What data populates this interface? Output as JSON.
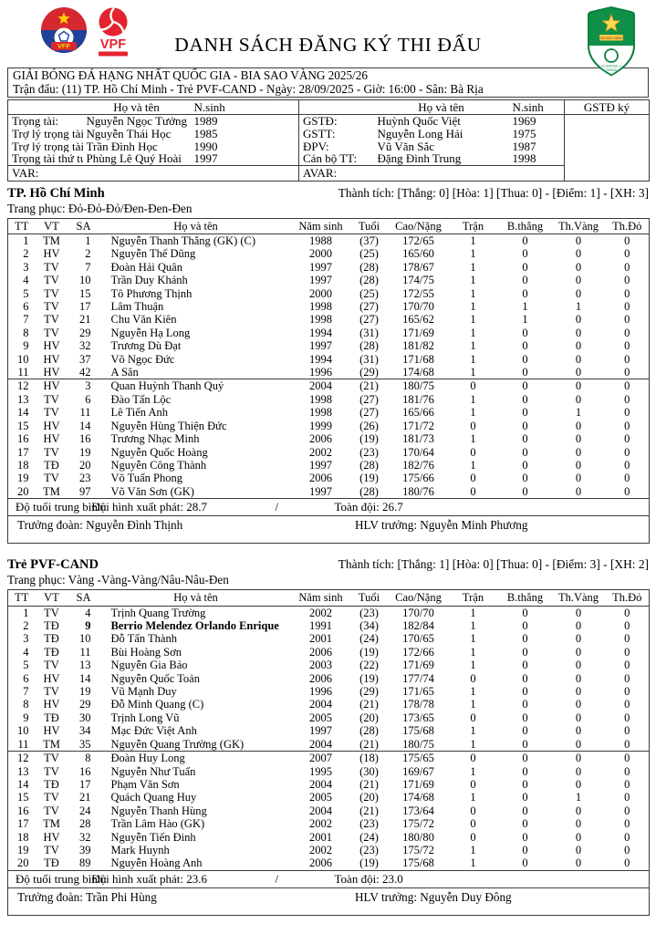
{
  "document": {
    "title": "DANH SÁCH ĐĂNG KÝ THI ĐẤU"
  },
  "colors": {
    "border": "#3b3b3b",
    "vff_red": "#d5282f",
    "vff_blue": "#20429a",
    "vpf_red": "#e42330",
    "badge_green": "#0c8040",
    "gold": "#f5c518"
  },
  "logos": {
    "vff_text": "VFF",
    "vpf_text": "VPF",
    "badge_banner": "BIA SAO VÀNG",
    "badge_line1": "V.LEAGUE 2",
    "badge_line2": "2025/26"
  },
  "match_info": {
    "tournament": "GIẢI BÓNG ĐÁ HẠNG NHẤT QUỐC GIA - BIA SAO VÀNG 2025/26",
    "fixture": "Trận đấu: (11) TP. Hồ Chí Minh - Trẻ PVF-CAND - Ngày: 28/09/2025 - Giờ: 16:00 - Sân: Bà Rịa"
  },
  "officials": {
    "name_header": "Họ và tên",
    "birth_header": "N.sinh",
    "sign_header": "GSTĐ ký",
    "left": [
      {
        "label": "Trọng tài:",
        "name": "Nguyễn Ngọc Tưởng",
        "birth": "1989"
      },
      {
        "label": "Trợ lý trọng tài 1:",
        "name": "Nguyễn Thái Học",
        "birth": "1985"
      },
      {
        "label": "Trợ lý trọng tài 2:",
        "name": "Trần Đình Học",
        "birth": "1990"
      },
      {
        "label": "Trọng tài thứ tư:",
        "name": "Phùng Lê Quý Hoài",
        "birth": "1997"
      }
    ],
    "right": [
      {
        "label": "GSTĐ:",
        "name": "Huỳnh Quốc Việt",
        "birth": "1969"
      },
      {
        "label": "GSTT:",
        "name": "Nguyễn Long Hải",
        "birth": "1975"
      },
      {
        "label": "ĐPV:",
        "name": "Vũ Văn Sắc",
        "birth": "1987"
      },
      {
        "label": "Cán bộ TT:",
        "name": "Đặng Đình Trung",
        "birth": "1998"
      }
    ],
    "var_label": "VAR:",
    "avar_label": "AVAR:"
  },
  "table_headers": {
    "tt": "TT",
    "vt": "VT",
    "sa": "SA",
    "name": "Họ và tên",
    "birth": "Năm sinh",
    "age": "Tuổi",
    "hw": "Cao/Nặng",
    "matches": "Trận",
    "goals": "B.thắng",
    "yellow": "Th.Vàng",
    "red": "Th.Đỏ"
  },
  "teams": [
    {
      "name": "TP. Hồ Chí Minh",
      "record": "Thành tích: [Thắng: 0] [Hòa: 1] [Thua: 0] - [Điểm: 1] - [XH: 3]",
      "kit": "Trang phục: Đỏ-Đỏ-Đỏ/Đen-Đen-Đen",
      "starters": [
        {
          "tt": "1",
          "vt": "TM",
          "sa": "1",
          "name": "Nguyễn Thanh Thắng (GK) (C)",
          "birth": "1988",
          "age": "(37)",
          "hw": "172/65",
          "matches": "1",
          "goals": "0",
          "yellow": "0",
          "red": "0"
        },
        {
          "tt": "2",
          "vt": "HV",
          "sa": "2",
          "name": "Nguyễn Thế Dũng",
          "birth": "2000",
          "age": "(25)",
          "hw": "165/60",
          "matches": "1",
          "goals": "0",
          "yellow": "0",
          "red": "0"
        },
        {
          "tt": "3",
          "vt": "TV",
          "sa": "7",
          "name": "Đoàn Hải Quân",
          "birth": "1997",
          "age": "(28)",
          "hw": "178/67",
          "matches": "1",
          "goals": "0",
          "yellow": "0",
          "red": "0"
        },
        {
          "tt": "4",
          "vt": "TV",
          "sa": "10",
          "name": "Trần Duy Khánh",
          "birth": "1997",
          "age": "(28)",
          "hw": "174/75",
          "matches": "1",
          "goals": "0",
          "yellow": "0",
          "red": "0"
        },
        {
          "tt": "5",
          "vt": "TV",
          "sa": "15",
          "name": "Tô Phương Thịnh",
          "birth": "2000",
          "age": "(25)",
          "hw": "172/55",
          "matches": "1",
          "goals": "0",
          "yellow": "0",
          "red": "0"
        },
        {
          "tt": "6",
          "vt": "TV",
          "sa": "17",
          "name": "Lâm Thuận",
          "birth": "1998",
          "age": "(27)",
          "hw": "170/70",
          "matches": "1",
          "goals": "1",
          "yellow": "1",
          "red": "0"
        },
        {
          "tt": "7",
          "vt": "TV",
          "sa": "21",
          "name": "Chu Văn Kiên",
          "birth": "1998",
          "age": "(27)",
          "hw": "165/62",
          "matches": "1",
          "goals": "1",
          "yellow": "0",
          "red": "0"
        },
        {
          "tt": "8",
          "vt": "TV",
          "sa": "29",
          "name": "Nguyễn Hạ Long",
          "birth": "1994",
          "age": "(31)",
          "hw": "171/69",
          "matches": "1",
          "goals": "0",
          "yellow": "0",
          "red": "0"
        },
        {
          "tt": "9",
          "vt": "HV",
          "sa": "32",
          "name": "Trương Dù Đạt",
          "birth": "1997",
          "age": "(28)",
          "hw": "181/82",
          "matches": "1",
          "goals": "0",
          "yellow": "0",
          "red": "0"
        },
        {
          "tt": "10",
          "vt": "HV",
          "sa": "37",
          "name": "Võ Ngọc Đức",
          "birth": "1994",
          "age": "(31)",
          "hw": "171/68",
          "matches": "1",
          "goals": "0",
          "yellow": "0",
          "red": "0"
        },
        {
          "tt": "11",
          "vt": "HV",
          "sa": "42",
          "name": "A Sân",
          "birth": "1996",
          "age": "(29)",
          "hw": "174/68",
          "matches": "1",
          "goals": "0",
          "yellow": "0",
          "red": "0"
        }
      ],
      "substitutes": [
        {
          "tt": "12",
          "vt": "HV",
          "sa": "3",
          "name": "Quan Huỳnh Thanh Quý",
          "birth": "2004",
          "age": "(21)",
          "hw": "180/75",
          "matches": "0",
          "goals": "0",
          "yellow": "0",
          "red": "0"
        },
        {
          "tt": "13",
          "vt": "TV",
          "sa": "6",
          "name": "Đào Tấn Lộc",
          "birth": "1998",
          "age": "(27)",
          "hw": "181/76",
          "matches": "1",
          "goals": "0",
          "yellow": "0",
          "red": "0"
        },
        {
          "tt": "14",
          "vt": "TV",
          "sa": "11",
          "name": "Lê Tiến Anh",
          "birth": "1998",
          "age": "(27)",
          "hw": "165/66",
          "matches": "1",
          "goals": "0",
          "yellow": "1",
          "red": "0"
        },
        {
          "tt": "15",
          "vt": "HV",
          "sa": "14",
          "name": "Nguyễn Hùng Thiện Đức",
          "birth": "1999",
          "age": "(26)",
          "hw": "171/72",
          "matches": "0",
          "goals": "0",
          "yellow": "0",
          "red": "0"
        },
        {
          "tt": "16",
          "vt": "HV",
          "sa": "16",
          "name": "Trương Nhạc Minh",
          "birth": "2006",
          "age": "(19)",
          "hw": "181/73",
          "matches": "1",
          "goals": "0",
          "yellow": "0",
          "red": "0"
        },
        {
          "tt": "17",
          "vt": "TV",
          "sa": "19",
          "name": "Nguyễn Quốc Hoàng",
          "birth": "2002",
          "age": "(23)",
          "hw": "170/64",
          "matches": "0",
          "goals": "0",
          "yellow": "0",
          "red": "0"
        },
        {
          "tt": "18",
          "vt": "TĐ",
          "sa": "20",
          "name": "Nguyễn Công Thành",
          "birth": "1997",
          "age": "(28)",
          "hw": "182/76",
          "matches": "1",
          "goals": "0",
          "yellow": "0",
          "red": "0"
        },
        {
          "tt": "19",
          "vt": "TV",
          "sa": "23",
          "name": "Võ Tuấn Phong",
          "birth": "2006",
          "age": "(19)",
          "hw": "175/66",
          "matches": "0",
          "goals": "0",
          "yellow": "0",
          "red": "0"
        },
        {
          "tt": "20",
          "vt": "TM",
          "sa": "97",
          "name": "Võ Văn Sơn (GK)",
          "birth": "1997",
          "age": "(28)",
          "hw": "180/76",
          "matches": "0",
          "goals": "0",
          "yellow": "0",
          "red": "0"
        }
      ],
      "avg_label": "Độ tuổi trung bình:",
      "avg_starting": "Đội hình xuất phát: 28.7",
      "avg_sep": "/",
      "avg_full": "Toàn đội: 26.7",
      "manager": "Trưởng đoàn: Nguyễn Đình Thịnh",
      "coach": "HLV trưởng: Nguyễn Minh Phương"
    },
    {
      "name": "Trẻ PVF-CAND",
      "record": "Thành tích: [Thắng: 1] [Hòa: 0] [Thua: 0] - [Điểm: 3] - [XH: 2]",
      "kit": "Trang phục: Vàng -Vàng-Vàng/Nâu-Nâu-Đen",
      "starters": [
        {
          "tt": "1",
          "vt": "TV",
          "sa": "4",
          "name": "Trịnh Quang Trường",
          "birth": "2002",
          "age": "(23)",
          "hw": "170/70",
          "matches": "1",
          "goals": "0",
          "yellow": "0",
          "red": "0"
        },
        {
          "tt": "2",
          "vt": "TĐ",
          "sa": "9",
          "name": "Berrio Melendez Orlando Enrique",
          "birth": "1991",
          "age": "(34)",
          "hw": "182/84",
          "matches": "1",
          "goals": "0",
          "yellow": "0",
          "red": "0",
          "bold": true
        },
        {
          "tt": "3",
          "vt": "TĐ",
          "sa": "10",
          "name": "Đỗ Tấn Thành",
          "birth": "2001",
          "age": "(24)",
          "hw": "170/65",
          "matches": "1",
          "goals": "0",
          "yellow": "0",
          "red": "0"
        },
        {
          "tt": "4",
          "vt": "TĐ",
          "sa": "11",
          "name": "Bùi Hoàng Sơn",
          "birth": "2006",
          "age": "(19)",
          "hw": "172/66",
          "matches": "1",
          "goals": "0",
          "yellow": "0",
          "red": "0"
        },
        {
          "tt": "5",
          "vt": "TV",
          "sa": "13",
          "name": "Nguyễn Gia Bảo",
          "birth": "2003",
          "age": "(22)",
          "hw": "171/69",
          "matches": "1",
          "goals": "0",
          "yellow": "0",
          "red": "0"
        },
        {
          "tt": "6",
          "vt": "HV",
          "sa": "14",
          "name": "Nguyễn Quốc Toản",
          "birth": "2006",
          "age": "(19)",
          "hw": "177/74",
          "matches": "0",
          "goals": "0",
          "yellow": "0",
          "red": "0"
        },
        {
          "tt": "7",
          "vt": "TV",
          "sa": "19",
          "name": "Vũ Mạnh Duy",
          "birth": "1996",
          "age": "(29)",
          "hw": "171/65",
          "matches": "1",
          "goals": "0",
          "yellow": "0",
          "red": "0"
        },
        {
          "tt": "8",
          "vt": "HV",
          "sa": "29",
          "name": "Đỗ Minh Quang (C)",
          "birth": "2004",
          "age": "(21)",
          "hw": "178/78",
          "matches": "1",
          "goals": "0",
          "yellow": "0",
          "red": "0"
        },
        {
          "tt": "9",
          "vt": "TĐ",
          "sa": "30",
          "name": "Trịnh Long Vũ",
          "birth": "2005",
          "age": "(20)",
          "hw": "173/65",
          "matches": "0",
          "goals": "0",
          "yellow": "0",
          "red": "0"
        },
        {
          "tt": "10",
          "vt": "HV",
          "sa": "34",
          "name": "Mạc Đức Việt Anh",
          "birth": "1997",
          "age": "(28)",
          "hw": "175/68",
          "matches": "1",
          "goals": "0",
          "yellow": "0",
          "red": "0"
        },
        {
          "tt": "11",
          "vt": "TM",
          "sa": "35",
          "name": "Nguyễn Quang Trường (GK)",
          "birth": "2004",
          "age": "(21)",
          "hw": "180/75",
          "matches": "1",
          "goals": "0",
          "yellow": "0",
          "red": "0"
        }
      ],
      "substitutes": [
        {
          "tt": "12",
          "vt": "TV",
          "sa": "8",
          "name": "Đoàn Huy Long",
          "birth": "2007",
          "age": "(18)",
          "hw": "175/65",
          "matches": "0",
          "goals": "0",
          "yellow": "0",
          "red": "0"
        },
        {
          "tt": "13",
          "vt": "TV",
          "sa": "16",
          "name": "Nguyễn Như Tuấn",
          "birth": "1995",
          "age": "(30)",
          "hw": "169/67",
          "matches": "1",
          "goals": "0",
          "yellow": "0",
          "red": "0"
        },
        {
          "tt": "14",
          "vt": "TĐ",
          "sa": "17",
          "name": "Phạm Văn Sơn",
          "birth": "2004",
          "age": "(21)",
          "hw": "171/69",
          "matches": "0",
          "goals": "0",
          "yellow": "0",
          "red": "0"
        },
        {
          "tt": "15",
          "vt": "TV",
          "sa": "21",
          "name": "Quách Quang Huy",
          "birth": "2005",
          "age": "(20)",
          "hw": "174/68",
          "matches": "1",
          "goals": "0",
          "yellow": "1",
          "red": "0"
        },
        {
          "tt": "16",
          "vt": "TV",
          "sa": "24",
          "name": "Nguyễn Thanh Hùng",
          "birth": "2004",
          "age": "(21)",
          "hw": "173/64",
          "matches": "0",
          "goals": "0",
          "yellow": "0",
          "red": "0"
        },
        {
          "tt": "17",
          "vt": "TM",
          "sa": "28",
          "name": "Trần Lâm Hào (GK)",
          "birth": "2002",
          "age": "(23)",
          "hw": "175/72",
          "matches": "0",
          "goals": "0",
          "yellow": "0",
          "red": "0"
        },
        {
          "tt": "18",
          "vt": "HV",
          "sa": "32",
          "name": "Nguyễn Tiến Đinh",
          "birth": "2001",
          "age": "(24)",
          "hw": "180/80",
          "matches": "0",
          "goals": "0",
          "yellow": "0",
          "red": "0"
        },
        {
          "tt": "19",
          "vt": "TV",
          "sa": "39",
          "name": "Mark Huynh",
          "birth": "2002",
          "age": "(23)",
          "hw": "175/72",
          "matches": "1",
          "goals": "0",
          "yellow": "0",
          "red": "0"
        },
        {
          "tt": "20",
          "vt": "TĐ",
          "sa": "89",
          "name": "Nguyễn Hoàng Anh",
          "birth": "2006",
          "age": "(19)",
          "hw": "175/68",
          "matches": "1",
          "goals": "0",
          "yellow": "0",
          "red": "0"
        }
      ],
      "avg_label": "Độ tuổi trung bình:",
      "avg_starting": "Đội hình xuất phát: 23.6",
      "avg_sep": "/",
      "avg_full": "Toàn đội: 23.0",
      "manager": "Trưởng đoàn: Trần Phi Hùng",
      "coach": "HLV trưởng: Nguyễn Duy Đông"
    }
  ]
}
